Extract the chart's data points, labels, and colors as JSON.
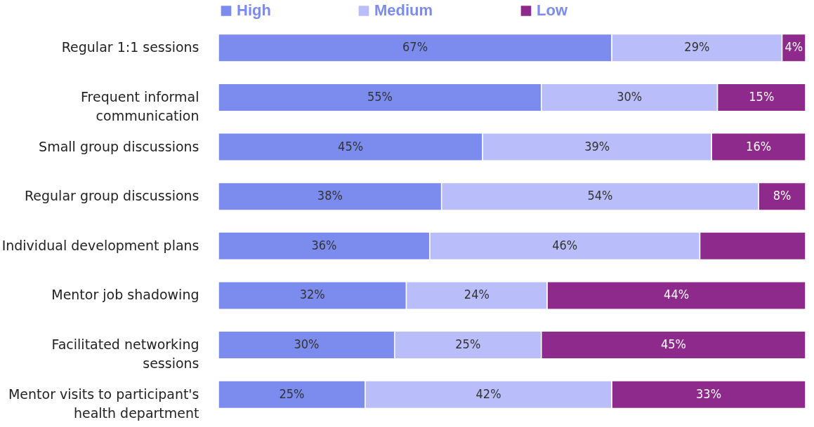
{
  "chart_data": {
    "type": "bar",
    "orientation": "horizontal",
    "stacked": true,
    "categories": [
      "Regular 1:1 sessions",
      "Frequent informal communication",
      "Small group discussions",
      "Regular group discussions",
      "Individual development plans",
      "Mentor job shadowing",
      "Facilitated networking sessions",
      "Mentor visits to participant's health department"
    ],
    "series": [
      {
        "name": "High",
        "color": "#7b8cee",
        "values": [
          67,
          55,
          45,
          38,
          36,
          32,
          30,
          25
        ],
        "value_labels": [
          "67%",
          "55%",
          "45%",
          "38%",
          "36%",
          "32%",
          "30%",
          "25%"
        ]
      },
      {
        "name": "Medium",
        "color": "#b9befa",
        "values": [
          29,
          30,
          39,
          54,
          46,
          24,
          25,
          42
        ],
        "value_labels": [
          "29%",
          "30%",
          "39%",
          "54%",
          "46%",
          "24%",
          "25%",
          "42%"
        ]
      },
      {
        "name": "Low",
        "color": "#8e2a8b",
        "values": [
          4,
          15,
          16,
          8,
          18,
          44,
          45,
          33
        ],
        "value_labels": [
          "4%",
          "15%",
          "16%",
          "8%",
          null,
          "44%",
          "45%",
          "33%"
        ]
      }
    ],
    "xlim": [
      0,
      100
    ],
    "tick_labels": "y",
    "legend": "top"
  }
}
